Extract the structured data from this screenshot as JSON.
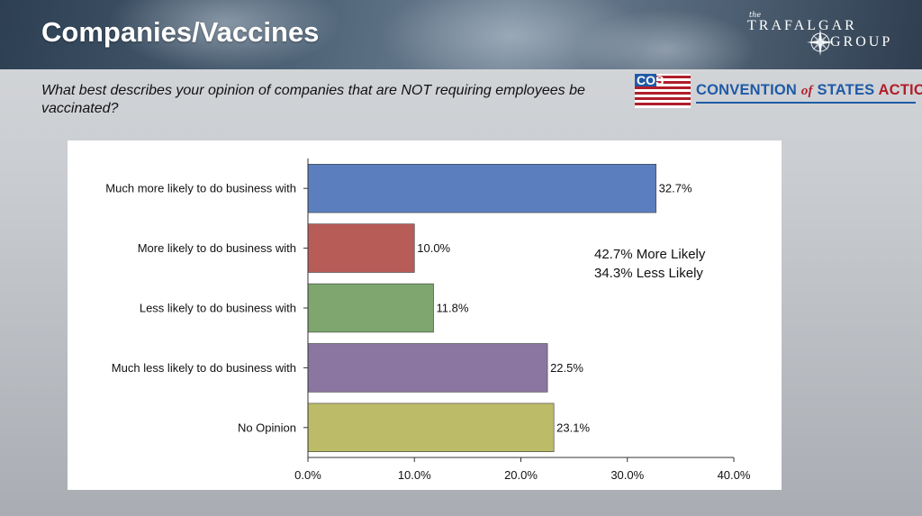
{
  "header": {
    "title": "Companies/Vaccines",
    "brand_logo": {
      "small_text": "the",
      "line1": "TRAFALGAR",
      "line2": "GROUP",
      "icon": "compass-star-icon"
    }
  },
  "question": "What best describes your opinion of companies that are NOT requiring employees be vaccinated?",
  "partner_logo": {
    "badge": "COS",
    "name_part1": "CONVENTION",
    "name_of": "of",
    "name_part2": "STATES",
    "name_part3": "ACTION",
    "colors": {
      "blue": "#1f5aa6",
      "red": "#b01e2a"
    }
  },
  "summary": {
    "more_likely": "42.7% More Likely",
    "less_likely": "34.3% Less Likely"
  },
  "chart_data": {
    "type": "bar",
    "orientation": "horizontal",
    "categories": [
      "Much more likely to do business with",
      "More likely to do business with",
      "Less likely to do business with",
      "Much less likely to do business with",
      "No Opinion"
    ],
    "values": [
      32.7,
      10.0,
      11.8,
      22.5,
      23.1
    ],
    "value_labels": [
      "32.7%",
      "10.0%",
      "11.8%",
      "22.5%",
      "23.1%"
    ],
    "colors": [
      "#5b7fbe",
      "#b85c58",
      "#7ea66e",
      "#8a76a0",
      "#bcbb68"
    ],
    "xlim": [
      0,
      40
    ],
    "x_ticks": [
      0,
      10,
      20,
      30,
      40
    ],
    "x_tick_labels": [
      "0.0%",
      "10.0%",
      "20.0%",
      "30.0%",
      "40.0%"
    ],
    "title": "",
    "xlabel": "",
    "ylabel": "",
    "grid": false,
    "legend": false
  }
}
